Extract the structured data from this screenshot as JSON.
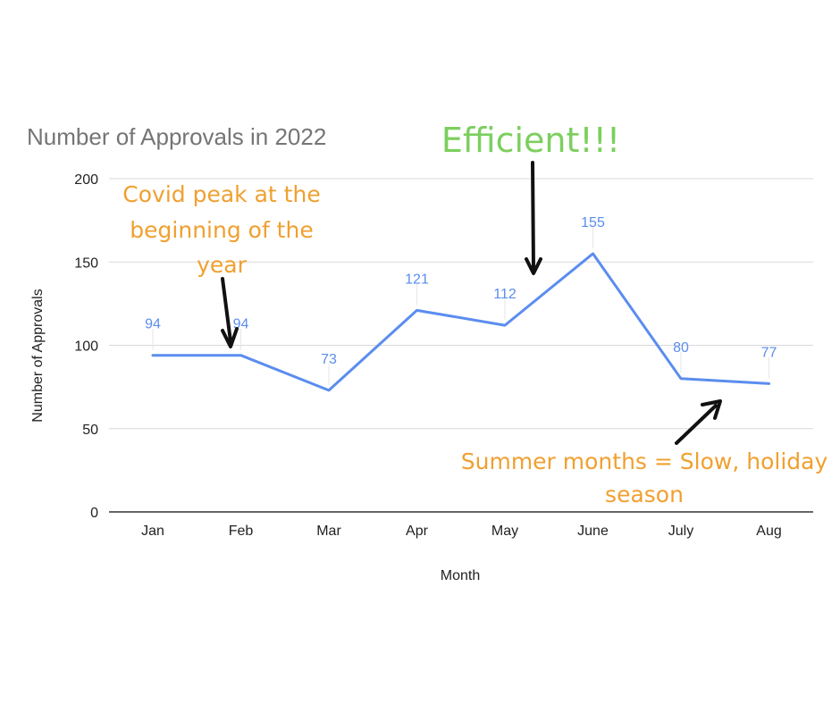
{
  "chart_data": {
    "type": "line",
    "title": "Number of Approvals in 2022",
    "xlabel": "Month",
    "ylabel": "Number of Approvals",
    "categories": [
      "Jan",
      "Feb",
      "Mar",
      "Apr",
      "May",
      "June",
      "July",
      "Aug"
    ],
    "series": [
      {
        "values": [
          94,
          94,
          73,
          121,
          112,
          155,
          80,
          77
        ],
        "color": "#5b8def"
      }
    ],
    "ylim": [
      0,
      200
    ],
    "yticks": [
      0,
      50,
      100,
      150,
      200
    ],
    "grid": true,
    "data_labels": true,
    "annotations": [
      {
        "lines": [
          "Covid peak at the",
          "beginning of the",
          "year"
        ],
        "color": "#f0a030",
        "points_to": "Feb"
      },
      {
        "lines": [
          "Efficient!!!"
        ],
        "color": "#7ccf5e",
        "points_to": "May-June"
      },
      {
        "lines": [
          "Summer months = Slow, holiday",
          "season"
        ],
        "color": "#f0a030",
        "points_to": "July-Aug"
      }
    ]
  }
}
